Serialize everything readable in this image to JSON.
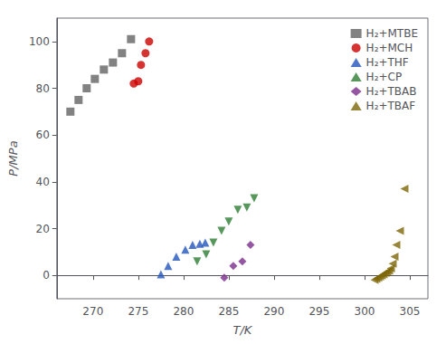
{
  "chart_data": {
    "type": "scatter",
    "xlabel": "T/K",
    "ylabel": "P/MPa",
    "xlim": [
      266,
      307
    ],
    "ylim": [
      -10,
      110
    ],
    "xticks": [
      270,
      275,
      280,
      285,
      290,
      295,
      300,
      305
    ],
    "yticks": [
      0,
      20,
      40,
      60,
      80,
      100
    ],
    "grid": false,
    "legend": "upper right",
    "series": [
      {
        "name": "H₂+MTBE",
        "color": "#636363",
        "marker": "square",
        "x": [
          267.5,
          268.4,
          269.3,
          270.2,
          271.2,
          272.2,
          273.2,
          274.2
        ],
        "values": [
          70,
          75,
          80,
          84,
          88,
          91,
          95,
          101
        ]
      },
      {
        "name": "H₂+MCH",
        "color": "#cc0000",
        "marker": "circle",
        "x": [
          274.5,
          275.0,
          275.3,
          275.8,
          276.2
        ],
        "values": [
          82,
          83,
          90,
          95,
          100
        ]
      },
      {
        "name": "H₂+THF",
        "color": "#2255bb",
        "marker": "triangle-up",
        "x": [
          277.5,
          278.3,
          279.2,
          280.2,
          281.0,
          281.8,
          282.4
        ],
        "values": [
          0.5,
          4,
          8,
          11,
          13,
          13.5,
          14
        ]
      },
      {
        "name": "H₂+CP",
        "color": "#2e7d32",
        "marker": "triangle-down",
        "x": [
          281.5,
          282.5,
          283.3,
          284.2,
          285.0,
          286.0,
          287.0,
          287.8
        ],
        "values": [
          6,
          9,
          14,
          19,
          23,
          28,
          29,
          33
        ]
      },
      {
        "name": "H₂+TBAB",
        "color": "#7b2d8b",
        "marker": "diamond",
        "x": [
          284.5,
          285.5,
          286.5,
          287.4
        ],
        "values": [
          -1,
          4,
          6,
          13
        ]
      },
      {
        "name": "H₂+TBAF",
        "color": "#7d6608",
        "marker": "triangle-left",
        "x": [
          301.1,
          301.3,
          301.5,
          301.7,
          301.9,
          302.1,
          302.3,
          302.5,
          302.7,
          302.9,
          303.1,
          303.3,
          303.5,
          303.9,
          304.4
        ],
        "values": [
          -2,
          -1.5,
          -1,
          -0.5,
          0,
          0.5,
          1,
          1.5,
          2,
          3,
          5,
          8,
          13,
          19,
          37
        ]
      }
    ]
  }
}
